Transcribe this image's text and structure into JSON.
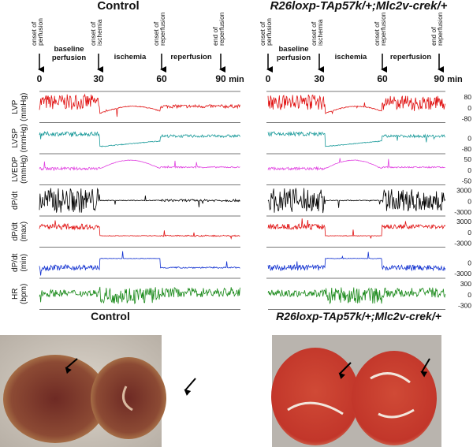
{
  "panels": [
    {
      "title": "Control",
      "events": [
        {
          "lines": [
            "onset of",
            "perfusion"
          ]
        },
        {
          "lines": [
            "onset of",
            "ischemia"
          ]
        },
        {
          "lines": [
            "onset of",
            "reperfusion"
          ]
        },
        {
          "lines": [
            "end of",
            "reperfusion"
          ]
        }
      ],
      "phases": [
        {
          "lines": [
            "baseline",
            "perfusion"
          ]
        },
        {
          "lines": [
            "ischemia"
          ]
        },
        {
          "lines": [
            "reperfusion"
          ]
        }
      ],
      "times": [
        "0",
        "30",
        "60",
        "90"
      ],
      "time_unit": "min"
    },
    {
      "title": "R26loxp-TAp57k/+;Mlc2v-crek/+",
      "events": [
        {
          "lines": [
            "onset of",
            "perfusion"
          ]
        },
        {
          "lines": [
            "onset of",
            "ischemia"
          ]
        },
        {
          "lines": [
            "onset of",
            "reperfusion"
          ]
        },
        {
          "lines": [
            "end of",
            "reperfusion"
          ]
        }
      ],
      "phases": [
        {
          "lines": [
            "baseline",
            "perfusion"
          ]
        },
        {
          "lines": [
            "ischemia"
          ]
        },
        {
          "lines": [
            "reperfusion"
          ]
        }
      ],
      "times": [
        "0",
        "30",
        "60",
        "90"
      ],
      "time_unit": "min"
    }
  ],
  "traces": [
    {
      "lines": [
        "LVP",
        "(mmHg)"
      ],
      "scale": [
        "80",
        "0",
        "-80"
      ]
    },
    {
      "lines": [
        "LVSP",
        "(mmHg)"
      ],
      "scale": [
        "0",
        "-80"
      ]
    },
    {
      "lines": [
        "LVEDP",
        "(mmHg)"
      ],
      "scale": [
        "50",
        "0",
        "-50"
      ]
    },
    {
      "lines": [
        "dP/dt"
      ],
      "scale": [
        "3000",
        "0",
        "-3000"
      ]
    },
    {
      "lines": [
        "dP/dt",
        "(max)"
      ],
      "scale": [
        "3000",
        "0",
        "-3000"
      ]
    },
    {
      "lines": [
        "dP/dt",
        "(min)"
      ],
      "scale": [
        "0",
        "-3000"
      ]
    },
    {
      "lines": [
        "HR",
        "(bpm)"
      ],
      "scale": [
        "300",
        "0",
        "-300"
      ]
    }
  ],
  "photos": {
    "titles": [
      "Control",
      "R26loxp-TAp57k/+;Mlc2v-crek/+"
    ]
  }
}
